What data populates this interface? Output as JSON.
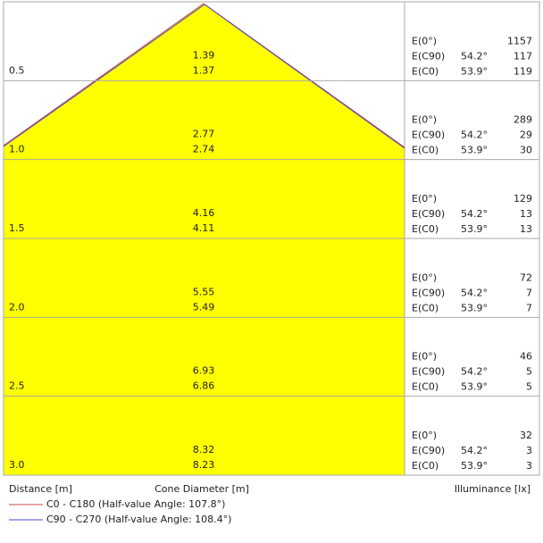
{
  "rows": [
    {
      "distance": "0.5",
      "diameter_c90": "1.39",
      "diameter_c0": "1.37",
      "e0": "1157",
      "angle_c90": "54.2°",
      "e_c90": "117",
      "angle_c0": "53.9°",
      "e_c0": "119"
    },
    {
      "distance": "1.0",
      "diameter_c90": "2.77",
      "diameter_c0": "2.74",
      "e0": "289",
      "angle_c90": "54.2°",
      "e_c90": "29",
      "angle_c0": "53.9°",
      "e_c0": "30"
    },
    {
      "distance": "1.5",
      "diameter_c90": "4.16",
      "diameter_c0": "4.11",
      "e0": "129",
      "angle_c90": "54.2°",
      "e_c90": "13",
      "angle_c0": "53.9°",
      "e_c0": "13"
    },
    {
      "distance": "2.0",
      "diameter_c90": "5.55",
      "diameter_c0": "5.49",
      "e0": "72",
      "angle_c90": "54.2°",
      "e_c90": "7",
      "angle_c0": "53.9°",
      "e_c0": "7"
    },
    {
      "distance": "2.5",
      "diameter_c90": "6.93",
      "diameter_c0": "6.86",
      "e0": "46",
      "angle_c90": "54.2°",
      "e_c90": "5",
      "angle_c0": "53.9°",
      "e_c0": "5"
    },
    {
      "distance": "3.0",
      "diameter_c90": "8.32",
      "diameter_c0": "8.23",
      "e0": "32",
      "angle_c90": "54.2°",
      "e_c90": "3",
      "angle_c0": "53.9°",
      "e_c0": "3"
    }
  ],
  "labels": {
    "e0": "E(0°)",
    "e_c90": "E(C90)",
    "e_c0": "E(C0)"
  },
  "axis_labels": {
    "distance": "Distance [m]",
    "cone_diameter": "Cone Diameter [m]",
    "illuminance": "Illuminance [lx]"
  },
  "legend": [
    {
      "name": "C0 - C180 (Half-value Angle: 107.8°)",
      "color": "#d04848"
    },
    {
      "name": "C90 - C270 (Half-value Angle: 108.4°)",
      "color": "#4848d0"
    }
  ],
  "cone_color": "#ffff00"
}
